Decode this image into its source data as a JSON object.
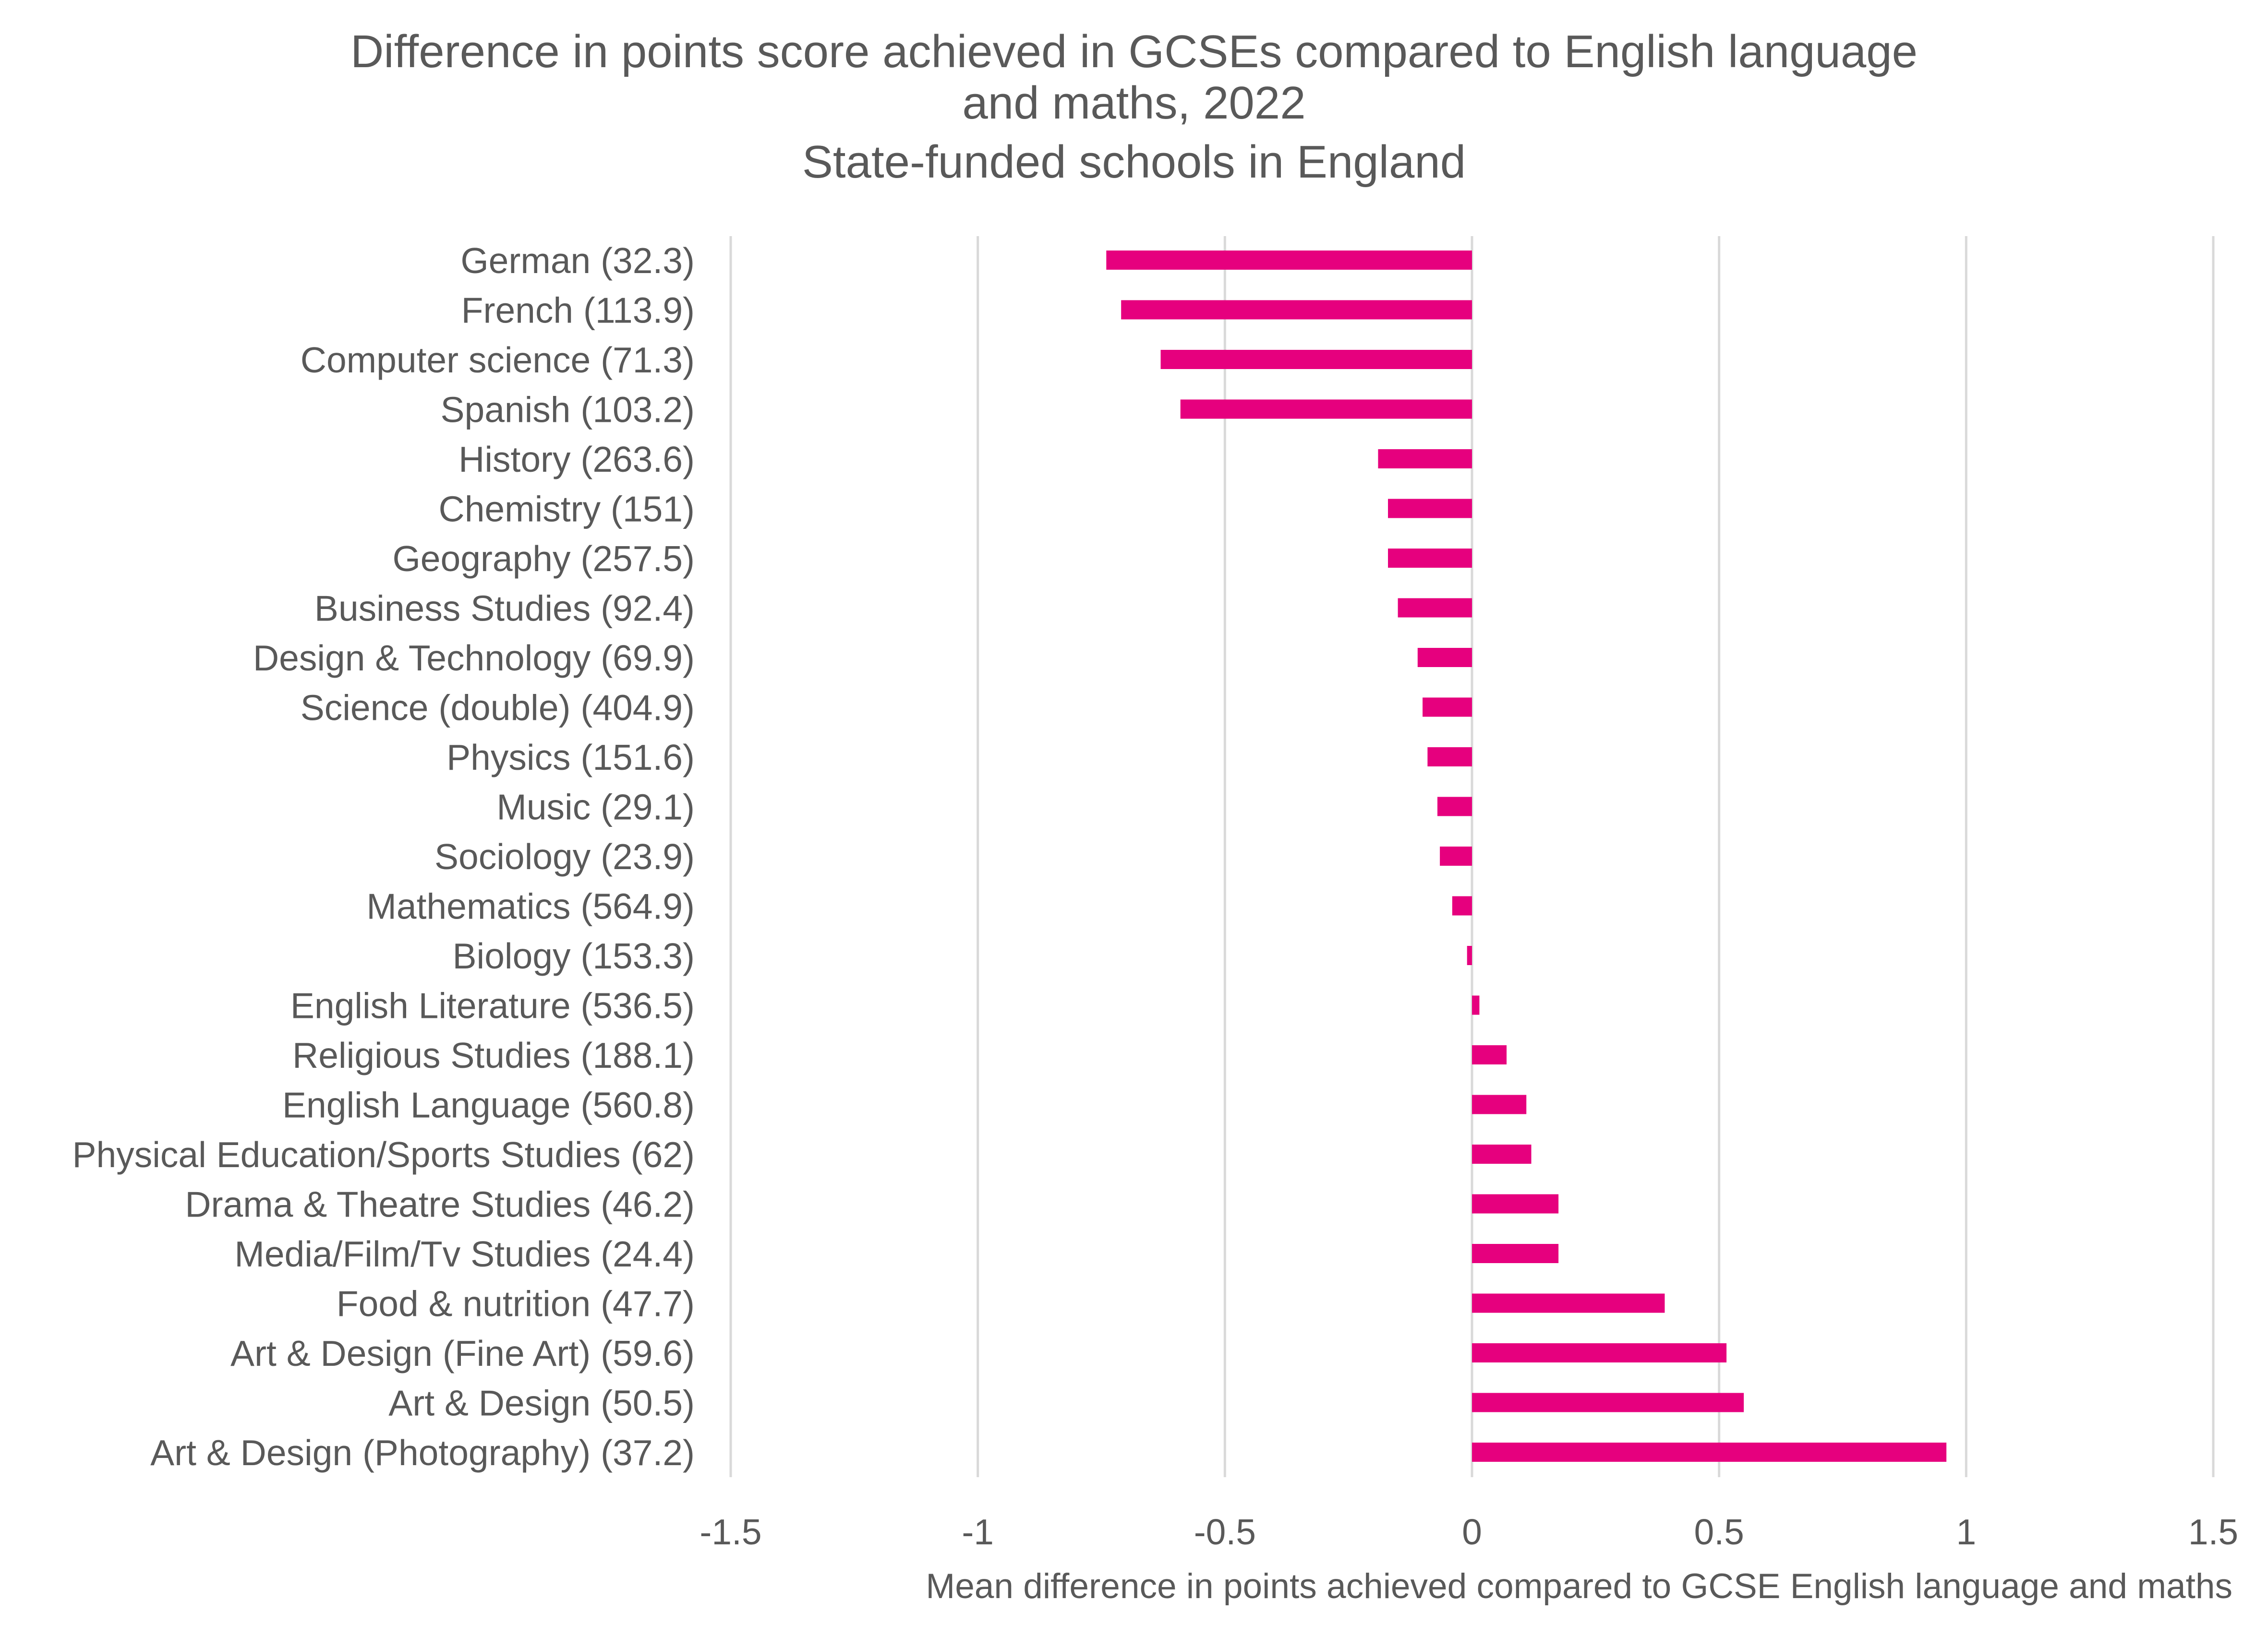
{
  "chart_data": {
    "type": "bar",
    "orientation": "horizontal",
    "title_lines": [
      "Difference in points score achieved in GCSEs compared to English language",
      "and maths, 2022",
      "State-funded schools in England"
    ],
    "xlabel": "Mean difference in points achieved compared to GCSE English language and maths",
    "ylabel": "",
    "xlim": [
      -1.5,
      1.5
    ],
    "x_ticks": [
      -1.5,
      -1,
      -0.5,
      0,
      0.5,
      1,
      1.5
    ],
    "x_tick_labels": [
      "-1.5",
      "-1",
      "-0.5",
      "0",
      "0.5",
      "1",
      "1.5"
    ],
    "grid": "vertical",
    "legend": "none",
    "bar_color": "#E6007E",
    "categories": [
      "German (32.3)",
      "French (113.9)",
      "Computer science (71.3)",
      "Spanish (103.2)",
      "History (263.6)",
      "Chemistry (151)",
      "Geography (257.5)",
      "Business Studies (92.4)",
      "Design & Technology (69.9)",
      "Science (double) (404.9)",
      "Physics (151.6)",
      "Music (29.1)",
      "Sociology (23.9)",
      "Mathematics (564.9)",
      "Biology (153.3)",
      "English Literature (536.5)",
      "Religious Studies (188.1)",
      "English Language (560.8)",
      "Physical Education/Sports Studies (62)",
      "Drama & Theatre Studies (46.2)",
      "Media/Film/Tv Studies (24.4)",
      "Food & nutrition (47.7)",
      "Art & Design (Fine Art) (59.6)",
      "Art & Design (50.5)",
      "Art & Design (Photography) (37.2)"
    ],
    "values": [
      -0.74,
      -0.71,
      -0.63,
      -0.59,
      -0.19,
      -0.17,
      -0.17,
      -0.15,
      -0.11,
      -0.1,
      -0.09,
      -0.07,
      -0.065,
      -0.04,
      -0.01,
      0.015,
      0.07,
      0.11,
      0.12,
      0.175,
      0.175,
      0.39,
      0.515,
      0.55,
      0.96
    ]
  }
}
